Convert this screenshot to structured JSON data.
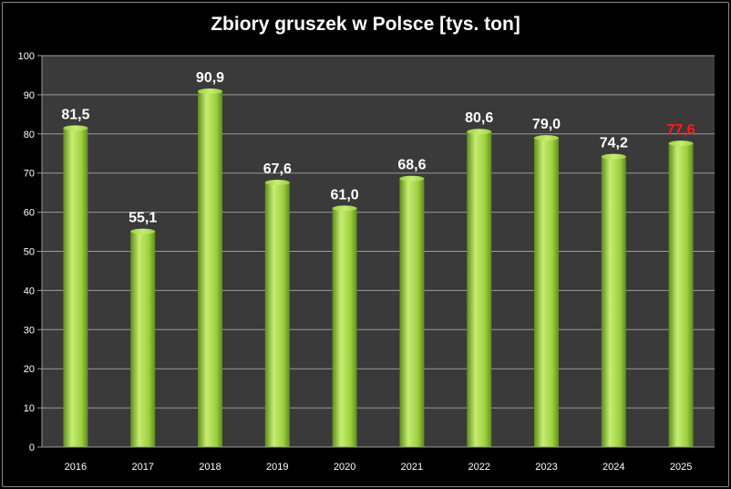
{
  "chart_data": {
    "type": "bar",
    "title": "Zbiory gruszek w Polsce [tys. ton]",
    "xlabel": "",
    "ylabel": "",
    "ylim": [
      0,
      100
    ],
    "ytick_step": 10,
    "yticks": [
      "0",
      "10",
      "20",
      "30",
      "40",
      "50",
      "60",
      "70",
      "80",
      "90",
      "100"
    ],
    "grid": true,
    "categories": [
      "2016",
      "2017",
      "2018",
      "2019",
      "2020",
      "2021",
      "2022",
      "2023",
      "2024",
      "2025"
    ],
    "values": [
      81.5,
      55.1,
      90.9,
      67.6,
      61.0,
      68.6,
      80.6,
      79.0,
      74.2,
      77.6
    ],
    "data_labels": [
      "81,5",
      "55,1",
      "90,9",
      "67,6",
      "61,0",
      "68,6",
      "80,6",
      "79,0",
      "74,2",
      "77,6"
    ],
    "highlight_index": 9
  },
  "colors": {
    "plot_background": "#3a3a3a",
    "gridline": "#9a9a9a",
    "bar_light": "#c6ee73",
    "bar_mid": "#9ccf3c",
    "bar_dark": "#5f8c1d",
    "label": "#ffffff",
    "highlight_label": "#ff1a1a"
  }
}
